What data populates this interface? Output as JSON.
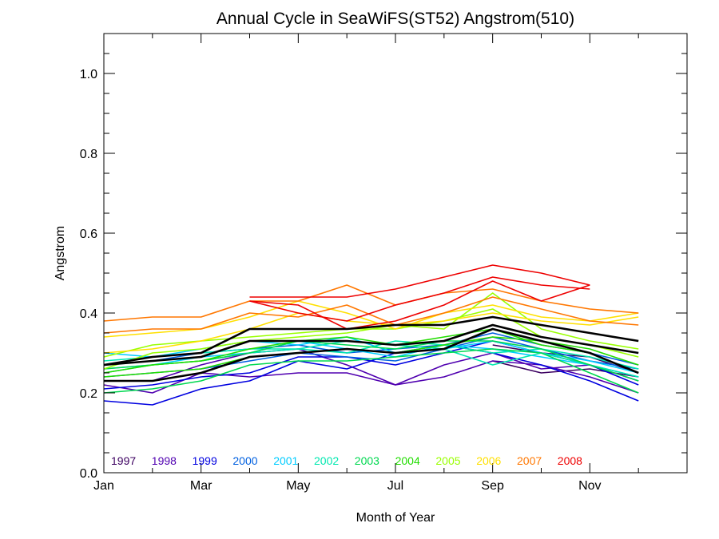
{
  "chart_data": {
    "type": "line",
    "title": "Annual Cycle in SeaWiFS(ST52) Angstrom(510)",
    "xlabel": "Month of Year",
    "ylabel": "Angstrom",
    "xlim": [
      0,
      12
    ],
    "ylim": [
      0,
      1.1
    ],
    "x_ticks": [
      {
        "pos": 0,
        "label": "Jan"
      },
      {
        "pos": 2,
        "label": "Mar"
      },
      {
        "pos": 4,
        "label": "May"
      },
      {
        "pos": 6,
        "label": "Jul"
      },
      {
        "pos": 8,
        "label": "Sep"
      },
      {
        "pos": 10,
        "label": "Nov"
      }
    ],
    "x_minor_ticks": [
      1,
      3,
      5,
      7,
      9,
      11
    ],
    "y_ticks": [
      {
        "pos": 0.0,
        "label": "0.0"
      },
      {
        "pos": 0.2,
        "label": "0.2"
      },
      {
        "pos": 0.4,
        "label": "0.4"
      },
      {
        "pos": 0.6,
        "label": "0.6"
      },
      {
        "pos": 0.8,
        "label": "0.8"
      },
      {
        "pos": 1.0,
        "label": "1.0"
      }
    ],
    "y_minor_step": 0.05,
    "months_x": [
      0,
      1,
      2,
      3,
      4,
      5,
      6,
      7,
      8,
      9,
      10,
      11
    ],
    "series": [
      {
        "name": "1997",
        "color": "#3c0060",
        "lines": [
          [
            null,
            null,
            null,
            null,
            null,
            null,
            null,
            null,
            0.28,
            0.25,
            0.26,
            0.24
          ],
          [
            null,
            null,
            null,
            null,
            null,
            null,
            null,
            null,
            0.32,
            0.3,
            0.29,
            0.25
          ]
        ]
      },
      {
        "name": "1998",
        "color": "#5000b0",
        "lines": [
          [
            0.22,
            0.2,
            0.25,
            0.24,
            0.25,
            0.25,
            0.22,
            0.24,
            0.28,
            0.27,
            0.24,
            0.2
          ],
          [
            0.23,
            0.23,
            0.27,
            0.3,
            0.31,
            0.27,
            0.22,
            0.27,
            0.3,
            0.26,
            0.27,
            0.23
          ]
        ]
      },
      {
        "name": "1999",
        "color": "#0000e0",
        "lines": [
          [
            0.18,
            0.17,
            0.21,
            0.23,
            0.28,
            0.26,
            0.3,
            0.32,
            0.3,
            0.27,
            0.23,
            0.18
          ],
          [
            0.21,
            0.22,
            0.24,
            0.25,
            0.29,
            0.29,
            0.27,
            0.3,
            0.33,
            0.3,
            0.27,
            0.22
          ]
        ]
      },
      {
        "name": "2000",
        "color": "#0060e0",
        "lines": [
          [
            0.24,
            0.25,
            0.26,
            0.28,
            0.3,
            0.29,
            0.28,
            0.31,
            0.34,
            0.31,
            0.28,
            0.26
          ],
          [
            0.27,
            0.28,
            0.3,
            0.31,
            0.32,
            0.3,
            0.31,
            0.32,
            0.35,
            0.32,
            0.3,
            0.27
          ]
        ]
      },
      {
        "name": "2001",
        "color": "#00ccff",
        "lines": [
          [
            0.3,
            0.29,
            0.31,
            0.33,
            0.32,
            0.34,
            0.3,
            0.31,
            0.33,
            0.3,
            0.28,
            0.25
          ],
          [
            0.26,
            0.27,
            0.29,
            0.3,
            0.33,
            0.31,
            0.29,
            0.32,
            0.31,
            0.29,
            0.27,
            0.24
          ]
        ]
      },
      {
        "name": "2002",
        "color": "#00e8b0",
        "lines": [
          [
            0.28,
            0.29,
            0.3,
            0.31,
            0.31,
            0.33,
            0.32,
            0.31,
            0.27,
            0.3,
            0.27,
            0.24
          ],
          [
            0.25,
            0.27,
            0.28,
            0.3,
            0.31,
            0.3,
            0.33,
            0.32,
            0.3,
            0.31,
            0.29,
            0.26
          ]
        ]
      },
      {
        "name": "2003",
        "color": "#00d850",
        "lines": [
          [
            0.2,
            0.21,
            0.23,
            0.27,
            0.28,
            0.28,
            0.29,
            0.3,
            0.31,
            0.3,
            0.25,
            0.2
          ],
          [
            0.26,
            0.27,
            0.28,
            0.3,
            0.33,
            0.32,
            0.31,
            0.33,
            0.33,
            0.31,
            0.27,
            0.23
          ]
        ]
      },
      {
        "name": "2004",
        "color": "#22dd00",
        "lines": [
          [
            0.25,
            0.27,
            0.28,
            0.31,
            0.33,
            0.34,
            0.32,
            0.34,
            0.36,
            0.32,
            0.3,
            0.25
          ],
          [
            0.24,
            0.25,
            0.26,
            0.29,
            0.3,
            0.31,
            0.3,
            0.32,
            0.34,
            0.33,
            0.31,
            0.27
          ]
        ]
      },
      {
        "name": "2005",
        "color": "#99ff00",
        "lines": [
          [
            0.29,
            0.32,
            0.33,
            0.34,
            0.35,
            0.36,
            0.36,
            0.38,
            0.41,
            0.34,
            0.32,
            0.29
          ],
          [
            0.26,
            0.3,
            0.31,
            0.33,
            0.34,
            0.35,
            0.37,
            0.36,
            0.45,
            0.36,
            0.33,
            0.31
          ]
        ]
      },
      {
        "name": "2006",
        "color": "#ffe000",
        "lines": [
          [
            0.34,
            0.35,
            0.36,
            0.39,
            0.43,
            0.4,
            0.36,
            0.4,
            0.42,
            0.39,
            0.38,
            0.4
          ],
          [
            0.3,
            0.31,
            0.33,
            0.36,
            0.4,
            0.38,
            0.37,
            0.38,
            0.4,
            0.38,
            0.37,
            0.39
          ]
        ]
      },
      {
        "name": "2007",
        "color": "#ff7700",
        "lines": [
          [
            0.38,
            0.39,
            0.39,
            0.43,
            0.43,
            0.47,
            0.42,
            0.45,
            0.46,
            0.43,
            0.41,
            0.4
          ],
          [
            0.35,
            0.36,
            0.36,
            0.4,
            0.39,
            0.42,
            0.37,
            0.4,
            0.44,
            0.41,
            0.38,
            0.37
          ]
        ]
      },
      {
        "name": "2008",
        "color": "#ee0000",
        "lines": [
          [
            null,
            null,
            null,
            0.44,
            0.44,
            0.44,
            0.46,
            0.49,
            0.52,
            0.5,
            0.47,
            null
          ],
          [
            null,
            null,
            null,
            0.43,
            0.4,
            0.38,
            0.42,
            0.45,
            0.49,
            0.47,
            0.46,
            null
          ],
          [
            null,
            null,
            null,
            0.43,
            0.42,
            0.36,
            0.38,
            0.42,
            0.48,
            0.43,
            0.47,
            null
          ]
        ]
      },
      {
        "name": "",
        "color": "#000000",
        "bold": true,
        "lines": [
          [
            0.27,
            0.29,
            0.3,
            0.36,
            0.36,
            0.36,
            0.37,
            0.37,
            0.39,
            0.37,
            0.35,
            0.33
          ],
          [
            0.27,
            0.28,
            0.29,
            0.33,
            0.33,
            0.33,
            0.32,
            0.33,
            0.37,
            0.34,
            0.32,
            0.3
          ],
          [
            0.23,
            0.23,
            0.25,
            0.29,
            0.3,
            0.31,
            0.3,
            0.31,
            0.36,
            0.33,
            0.3,
            0.25
          ]
        ]
      }
    ]
  }
}
